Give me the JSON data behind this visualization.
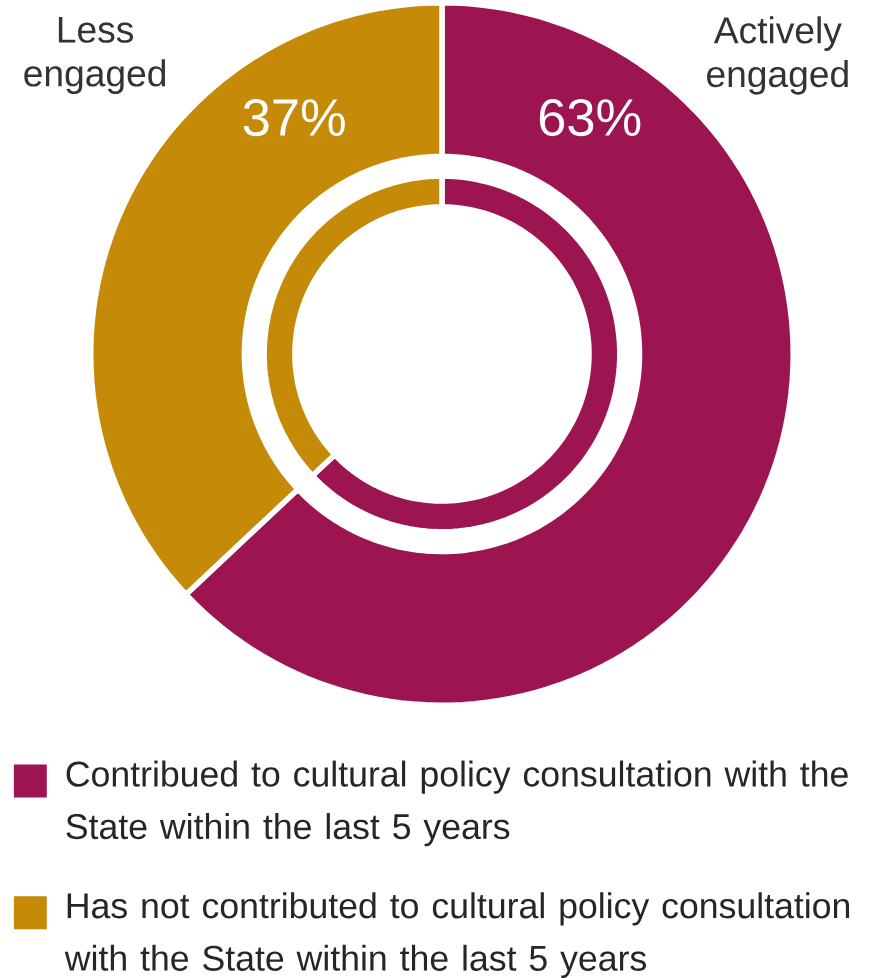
{
  "chart_data": {
    "type": "donut",
    "categories": [
      "Contribued to cultural policy consultation with the State within the last 5 years",
      "Has not contributed to cultural policy consultation with the State within the last 5 years"
    ],
    "series": [
      {
        "values": [
          63,
          37
        ]
      },
      {
        "values": [
          63,
          37
        ]
      }
    ],
    "value_labels": [
      "63%",
      "37%"
    ],
    "colors": [
      "#9c1550",
      "#c48a08"
    ],
    "annotations": [
      "Actively engaged",
      "Less engaged"
    ],
    "legend": "bottom"
  }
}
